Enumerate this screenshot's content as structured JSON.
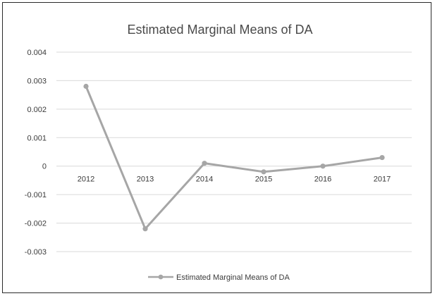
{
  "chart_data": {
    "type": "line",
    "title": "Estimated Marginal Means of DA",
    "categories": [
      "2012",
      "2013",
      "2014",
      "2015",
      "2016",
      "2017"
    ],
    "series": [
      {
        "name": "Estimated Marginal Means of DA",
        "values": [
          0.0028,
          -0.0022,
          0.0001,
          -0.0002,
          0.0,
          0.0003
        ]
      }
    ],
    "ylim": [
      -0.003,
      0.004
    ],
    "yticks": [
      "0.004",
      "0.003",
      "0.002",
      "0.001",
      "0",
      "-0.001",
      "-0.002",
      "-0.003"
    ],
    "grid": true,
    "legend_position": "bottom",
    "line_color": "#a6a6a6",
    "grid_color": "#d9d9d9"
  }
}
